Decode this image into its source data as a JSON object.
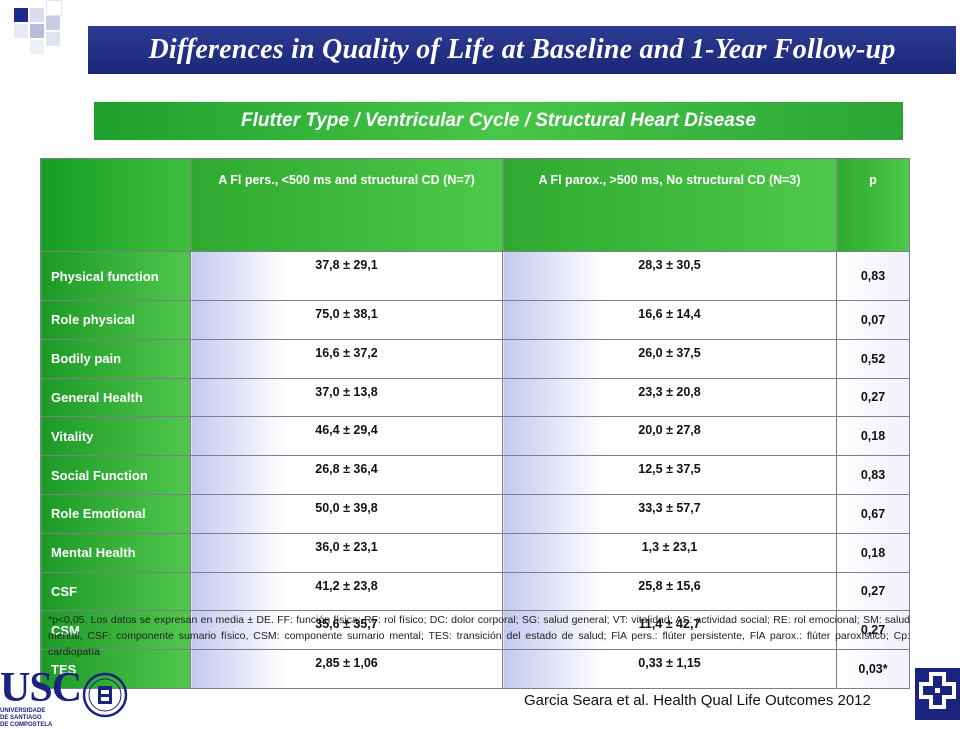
{
  "header": {
    "title": "Differences in Quality of Life at Baseline and 1-Year Follow-up",
    "subtitle": "Flutter Type / Ventricular Cycle / Structural Heart Disease"
  },
  "table": {
    "columns": [
      "",
      "A Fl pers., <500 ms and structural CD (N=7)",
      "A Fl parox., >500 ms, No structural CD (N=3)",
      "p"
    ],
    "rows": [
      {
        "label": "Physical function",
        "a": "37,8 ± 29,1",
        "b": "28,3 ± 30,5",
        "p": "0,83"
      },
      {
        "label": "Role physical",
        "a": "75,0 ± 38,1",
        "b": "16,6 ± 14,4",
        "p": "0,07"
      },
      {
        "label": "Bodily pain",
        "a": "16,6 ± 37,2",
        "b": "26,0 ± 37,5",
        "p": "0,52"
      },
      {
        "label": "General Health",
        "a": "37,0 ± 13,8",
        "b": "23,3 ± 20,8",
        "p": "0,27"
      },
      {
        "label": "Vitality",
        "a": "46,4 ± 29,4",
        "b": "20,0 ± 27,8",
        "p": "0,18"
      },
      {
        "label": "Social Function",
        "a": "26,8 ± 36,4",
        "b": "12,5 ± 37,5",
        "p": "0,83"
      },
      {
        "label": "Role Emotional",
        "a": "50,0 ± 39,8",
        "b": "33,3 ± 57,7",
        "p": "0,67"
      },
      {
        "label": "Mental Health",
        "a": "36,0 ± 23,1",
        "b": "1,3 ± 23,1",
        "p": "0,18"
      },
      {
        "label": "CSF",
        "a": "41,2 ± 23,8",
        "b": "25,8 ± 15,6",
        "p": "0,27"
      },
      {
        "label": "CSM",
        "a": "35,6 ± 35,7",
        "b": "11,4 ± 42,7",
        "p": "0,27"
      },
      {
        "label": "TES",
        "a": "2,85 ± 1,06",
        "b": "0,33 ± 1,15",
        "p": "0,03*"
      }
    ]
  },
  "footnote": "*p<0,05. Los datos se expresan en media ± DE. FF: función física; RF: rol físico; DC: dolor corporal; SG: salud general; VT: vitalidad; AS: actividad social; RE: rol emocional; SM: salud mental, CSF: componente sumario físico, CSM: componente sumario mental; TES: transición del estado de salud; FlA pers.: flúter persistente, FlA parox.: flúter paroxístico; Cp: cardiopatía",
  "citation": "Garcia Seara et al. Health Qual Life Outcomes 2012",
  "logos": {
    "usc": "USC",
    "usc_sub_1": "UNIVERSIDADE",
    "usc_sub_2": "DE SANTIAGO",
    "usc_sub_3": "DE COMPOSTELA"
  },
  "colors": {
    "title_bg": "#1f2a8a",
    "green": "#2fa92f",
    "tes_row": "#c65150"
  }
}
